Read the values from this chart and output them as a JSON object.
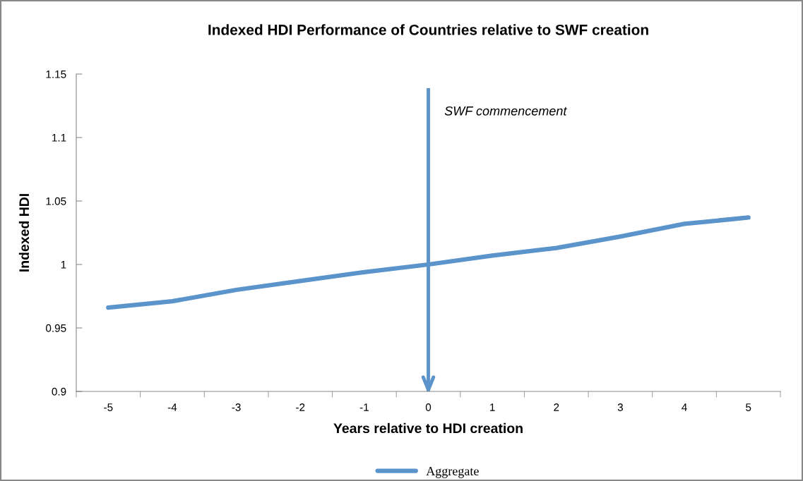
{
  "chart_data": {
    "type": "line",
    "title": "Indexed HDI Performance of Countries relative to SWF creation",
    "xlabel": "Years relative to HDI creation",
    "ylabel": "Indexed HDI",
    "categories": [
      "-5",
      "-4",
      "-3",
      "-2",
      "-1",
      "0",
      "1",
      "2",
      "3",
      "4",
      "5"
    ],
    "series": [
      {
        "name": "Aggregate",
        "color": "#5b93cb",
        "values": [
          0.966,
          0.971,
          0.98,
          0.987,
          0.994,
          1.0,
          1.007,
          1.013,
          1.022,
          1.032,
          1.037
        ]
      }
    ],
    "ylim": [
      0.9,
      1.15
    ],
    "yticks": [
      0.9,
      0.95,
      1,
      1.05,
      1.1,
      1.15
    ],
    "ref_lines": [
      {
        "axis": "x",
        "value": "0",
        "label": "SWF commencement",
        "color": "#5b93cb"
      }
    ],
    "grid": false,
    "legend": "bottom",
    "marker": "none",
    "line_style": "solid"
  }
}
